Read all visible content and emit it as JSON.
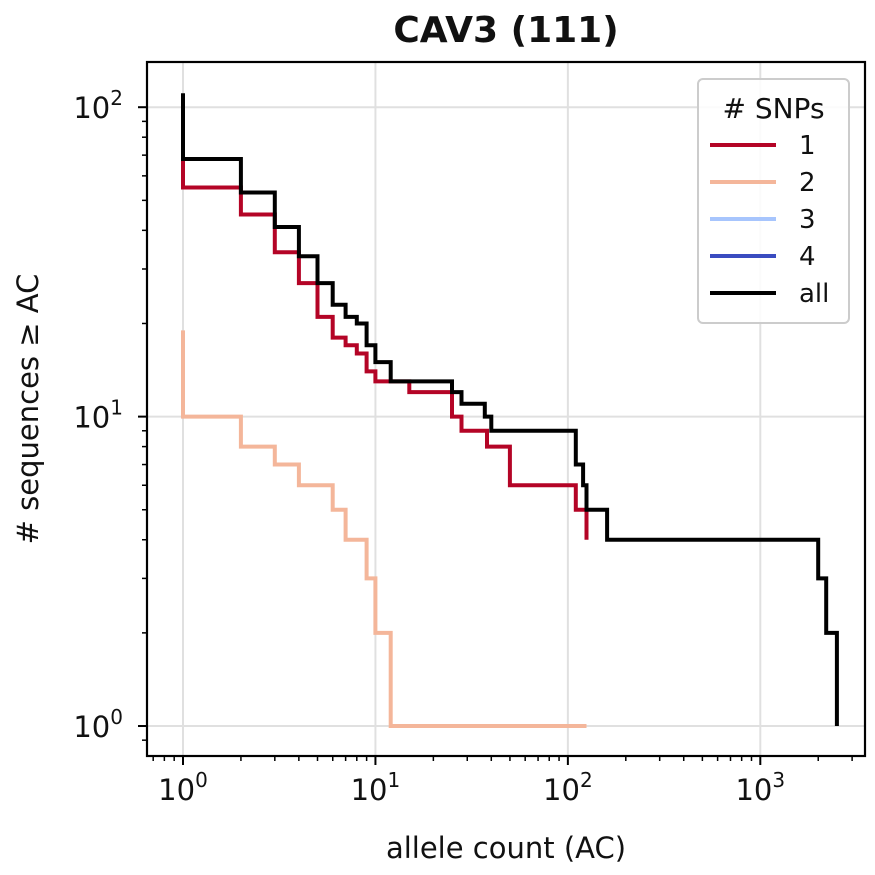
{
  "chart_data": {
    "type": "line",
    "title": "CAV3 (111)",
    "xlabel": "allele count (AC)",
    "ylabel": "# sequences ≥ AC",
    "xscale": "log",
    "yscale": "log",
    "xlim": [
      0.65,
      3500
    ],
    "ylim": [
      0.8,
      140
    ],
    "grid": true,
    "drawstyle": "steps-post",
    "x_ticks": [
      {
        "value": 1,
        "base": "10",
        "exp": "0"
      },
      {
        "value": 10,
        "base": "10",
        "exp": "1"
      },
      {
        "value": 100,
        "base": "10",
        "exp": "2"
      },
      {
        "value": 1000,
        "base": "10",
        "exp": "3"
      }
    ],
    "y_ticks": [
      {
        "value": 1,
        "base": "10",
        "exp": "0"
      },
      {
        "value": 10,
        "base": "10",
        "exp": "1"
      },
      {
        "value": 100,
        "base": "10",
        "exp": "2"
      }
    ],
    "legend": {
      "title": "# SNPs",
      "location": "upper right"
    },
    "series": [
      {
        "name": "1",
        "color": "#b40426",
        "x": [
          1,
          1,
          2,
          3,
          4,
          5,
          6,
          7,
          8,
          9,
          10,
          15,
          25,
          28,
          38,
          50,
          110,
          125
        ],
        "y": [
          68,
          55,
          45,
          34,
          27,
          21,
          18,
          17,
          16,
          14,
          13,
          12,
          10,
          9,
          8,
          6,
          5,
          4
        ]
      },
      {
        "name": "2",
        "color": "#f4b69a",
        "x": [
          1,
          1,
          2,
          3,
          4,
          6,
          7,
          9,
          10,
          12,
          125
        ],
        "y": [
          19,
          10,
          8,
          7,
          6,
          5,
          4,
          3,
          2,
          1,
          1
        ]
      },
      {
        "name": "3",
        "color": "#a7c5fd",
        "x": [],
        "y": []
      },
      {
        "name": "4",
        "color": "#3a4cc0",
        "x": [],
        "y": []
      },
      {
        "name": "all",
        "color": "#000000",
        "x": [
          1,
          1,
          2,
          3,
          4,
          5,
          6,
          7,
          8,
          9,
          10,
          12,
          25,
          28,
          37,
          40,
          110,
          120,
          125,
          160,
          2000,
          2200,
          2500
        ],
        "y": [
          111,
          68,
          53,
          41,
          33,
          27,
          23,
          21,
          20,
          17,
          15,
          13,
          12,
          11,
          10,
          9,
          7,
          6,
          5,
          4,
          3,
          2,
          1
        ]
      }
    ]
  }
}
